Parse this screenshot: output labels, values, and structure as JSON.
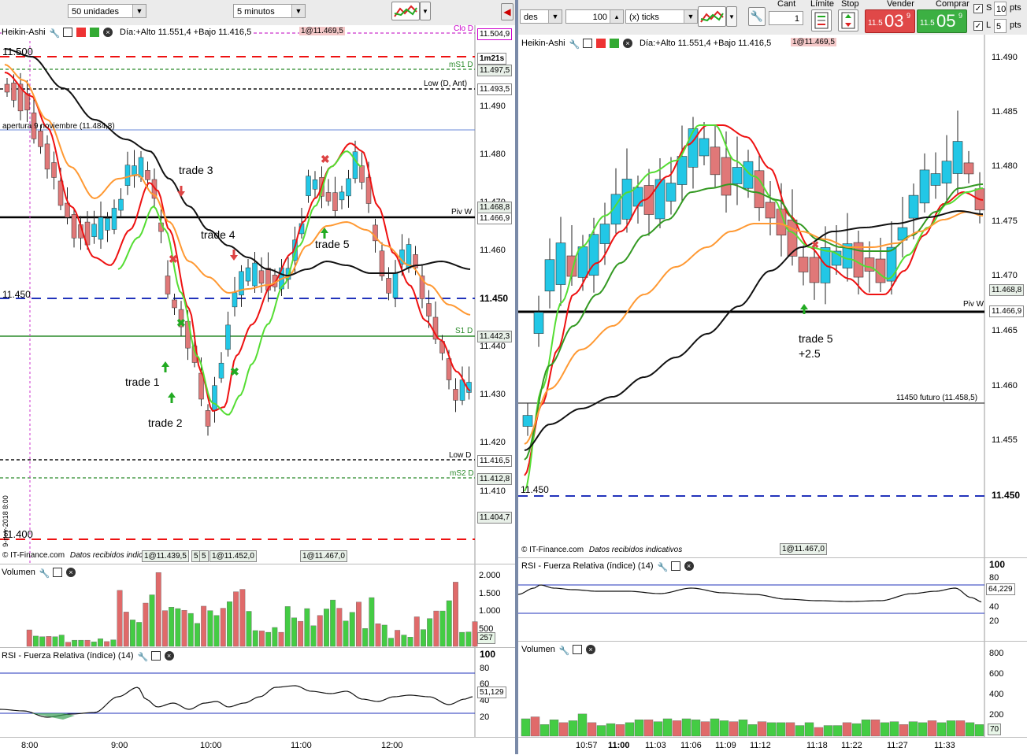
{
  "left": {
    "toolbar": {
      "quantity_select": "50 unidades",
      "interval_select": "5 minutos"
    },
    "main_header": {
      "title": "Heikin-Ashi",
      "info": "Día:+Alto 11.551,4 +Bajo 11.416,5",
      "order_tag": "1@11.469,5"
    },
    "price_axis": [
      "11.490",
      "11.480",
      "11.470",
      "11.460",
      "11.450",
      "11.440",
      "11.430",
      "11.420",
      "11.410"
    ],
    "big_labels": {
      "p11500": "11.500",
      "p11450": "11.450",
      "p11400": "11.400"
    },
    "level_labels": {
      "clo": "Clo D",
      "ms1": "mS1 D",
      "low_ant": "Low (D, Ant)",
      "apertura": "apertura 9 noviembre (11.484,8)",
      "pivw": "Piv W",
      "s1": "S1 D",
      "lowd": "Low D",
      "ms2": "mS2 D"
    },
    "level_badges": {
      "clo": "11.504,9",
      "timer": "1m21s",
      "ms1": "11.497,5",
      "low_ant": "11.493,5",
      "green": "11.468,8",
      "pivw": "11.466,9",
      "bold": "11.450",
      "s1": "11.442,3",
      "lowd": "11.416,5",
      "ms2": "11.412,8",
      "bottom": "11.404,7"
    },
    "footer": {
      "copyright": "© IT-Finance.com",
      "notice": "Datos recibidos indicativos",
      "tags": [
        "1@11.439,5",
        "5",
        "5",
        "1@11.452,0",
        "1@11.467,0"
      ]
    },
    "date_marker": "9-nov-2018 8:00",
    "trades": [
      "trade 1",
      "trade 2",
      "trade 3",
      "trade 4",
      "trade 5"
    ],
    "volume": {
      "title": "Volumen",
      "axis": [
        "2.000",
        "1.500",
        "1.000",
        "500"
      ],
      "last": "257",
      "values": [
        480,
        300,
        280,
        290,
        280,
        330,
        120,
        180,
        180,
        180,
        130,
        220,
        140,
        190,
        1630,
        1000,
        770,
        700,
        1260,
        1500,
        2150,
        1040,
        1140,
        1100,
        1050,
        960,
        670,
        1170,
        1040,
        900,
        1110,
        1300,
        1590,
        1660,
        1020,
        460,
        450,
        410,
        550,
        410,
        1160,
        830,
        730,
        1100,
        600,
        900,
        1090,
        1350,
        1110,
        740,
        990,
        1290,
        520,
        1420,
        660,
        620,
        240,
        470,
        330,
        270,
        860,
        490,
        810,
        1030,
        1030,
        1330,
        1870,
        410,
        420,
        720
      ]
    },
    "rsi": {
      "title": "RSI - Fuerza Relativa (índice) (14)",
      "axis": [
        "100",
        "80",
        "60",
        "40",
        "20"
      ],
      "value": "51,129"
    },
    "time_axis": [
      "8:00",
      "9:00",
      "10:00",
      "11:00",
      "12:00"
    ]
  },
  "right": {
    "toolbar": {
      "qty_label": "des",
      "ticks_value": "100",
      "ticks_label": "(x) ticks",
      "cant_label": "Cant",
      "cant_value": "1",
      "limite_label": "Límite",
      "stop_label": "Stop",
      "vender_label": "Vender",
      "vender_small": "11.5",
      "vender_big": "03",
      "vender_sup": "9",
      "comprar_label": "Comprar",
      "comprar_small": "11.5",
      "comprar_big": "05",
      "comprar_sup": "9",
      "s_label": "S",
      "s_value": "10",
      "l_label": "L",
      "l_value": "5",
      "pts": "pts"
    },
    "main_header": {
      "title": "Heikin-Ashi",
      "info": "Día:+Alto 11.551,4 +Bajo 11.416,5",
      "order_tag": "1@11.469,5"
    },
    "price_axis": [
      "11.490",
      "11.485",
      "11.480",
      "11.475",
      "11.470",
      "11.465",
      "11.460",
      "11.455"
    ],
    "badges": {
      "green": "11.468,8",
      "pivw": "11.466,9",
      "bold": "11.450"
    },
    "level_labels": {
      "pivw": "Piv W",
      "futuro": "11450 futuro (11.458,5)",
      "p11450": "11.450"
    },
    "trade_label": "trade 5",
    "trade_result": "+2.5",
    "footer": {
      "copyright": "© IT-Finance.com",
      "notice": "Datos recibidos indicativos",
      "tag": "1@11.467,0"
    },
    "rsi": {
      "title": "RSI - Fuerza Relativa (índice) (14)",
      "axis": [
        "100",
        "80",
        "40",
        "20"
      ],
      "value": "64,229"
    },
    "volume": {
      "title": "Volumen",
      "axis": [
        "800",
        "600",
        "400",
        "200"
      ],
      "last": "70",
      "values": [
        180,
        200,
        120,
        170,
        140,
        160,
        230,
        140,
        110,
        130,
        120,
        140,
        170,
        170,
        150,
        180,
        160,
        180,
        170,
        150,
        180,
        160,
        150,
        170,
        120,
        150,
        140,
        140,
        140,
        110,
        140,
        90,
        110,
        110,
        140,
        130,
        170,
        170,
        140,
        150,
        120,
        150,
        140,
        160,
        140,
        160,
        160,
        140,
        120
      ]
    },
    "time_axis": [
      "10:57",
      "11:00",
      "11:03",
      "11:06",
      "11:09",
      "11:12",
      "11:18",
      "11:22",
      "11:27",
      "11:33"
    ]
  },
  "colors": {
    "bull": "#22c7e6",
    "bear": "#e07878",
    "volUp": "#44cc44",
    "volDown": "#e06a6a",
    "red": "#ee1111",
    "green": "#55dd33",
    "orange": "#ff9933",
    "black": "#111111",
    "dkgreen": "#339922"
  }
}
